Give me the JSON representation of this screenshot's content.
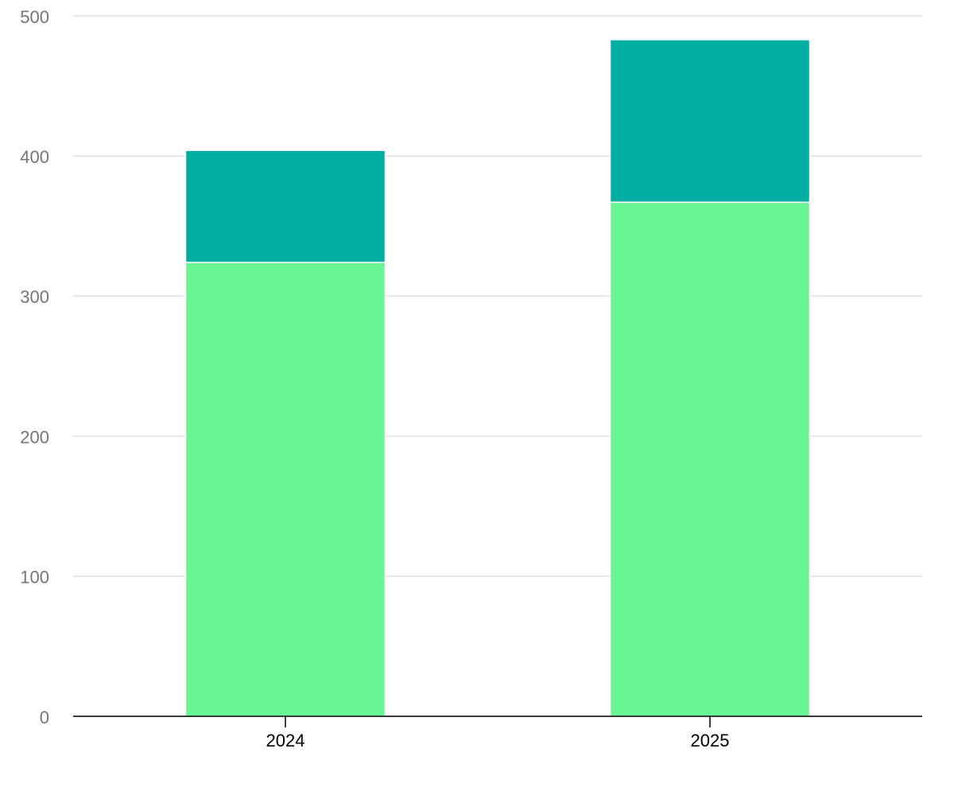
{
  "chart_data": {
    "type": "stacked-bar",
    "categories": [
      "2024",
      "2025"
    ],
    "series": [
      {
        "color": "#69f594",
        "values": [
          324,
          367
        ]
      },
      {
        "color": "#00aea2",
        "values": [
          80,
          116
        ]
      }
    ],
    "ylim": [
      0,
      500
    ],
    "yticks": [
      0,
      100,
      200,
      300,
      400,
      500
    ],
    "grid": true
  }
}
